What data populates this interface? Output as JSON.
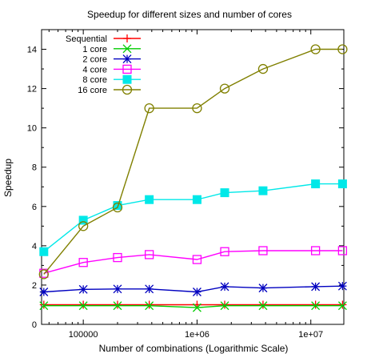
{
  "chart_data": {
    "type": "line",
    "title": "Speedup for different sizes and number of cores",
    "xlabel": "Number of combinations (Logarithmic Scale)",
    "ylabel": "Speedup",
    "xscale": "log",
    "xlim": [
      43000,
      19500000
    ],
    "ylim": [
      0,
      15
    ],
    "x_ticks": [
      100000,
      1000000,
      10000000
    ],
    "x_tick_labels": [
      "100000",
      "1e+06",
      "1e+07"
    ],
    "y_ticks": [
      0,
      2,
      4,
      6,
      8,
      10,
      12,
      14
    ],
    "y_tick_labels": [
      "0",
      "2",
      "4",
      "6",
      "8",
      "10",
      "12",
      "14"
    ],
    "grid": false,
    "legend_position": "top-left",
    "x": [
      45000,
      100000,
      200000,
      380000,
      1000000,
      1750000,
      3800000,
      11000000,
      19000000
    ],
    "series": [
      {
        "name": "Sequential",
        "color": "#ff0000",
        "marker": "plus",
        "values": [
          1.0,
          1.0,
          1.0,
          1.0,
          1.0,
          1.0,
          1.0,
          1.0,
          1.0
        ]
      },
      {
        "name": "1 core",
        "color": "#00cc00",
        "marker": "cross",
        "values": [
          0.95,
          0.95,
          0.95,
          0.95,
          0.85,
          0.95,
          0.95,
          0.95,
          0.95
        ]
      },
      {
        "name": "2 core",
        "color": "#0000c0",
        "marker": "star",
        "values": [
          1.65,
          1.78,
          1.8,
          1.8,
          1.65,
          1.92,
          1.85,
          1.92,
          1.95
        ]
      },
      {
        "name": "4 core",
        "color": "#ff00ff",
        "marker": "open-square",
        "values": [
          2.6,
          3.15,
          3.4,
          3.55,
          3.3,
          3.7,
          3.75,
          3.75,
          3.75
        ]
      },
      {
        "name": "8 core",
        "color": "#00e8e8",
        "marker": "filled-square",
        "values": [
          3.7,
          5.3,
          6.05,
          6.35,
          6.35,
          6.7,
          6.8,
          7.15,
          7.15
        ]
      },
      {
        "name": "16 core",
        "color": "#808000",
        "marker": "open-circle",
        "values": [
          2.55,
          5.0,
          5.95,
          11.0,
          11.0,
          12.0,
          13.0,
          14.0,
          14.0
        ]
      }
    ]
  }
}
